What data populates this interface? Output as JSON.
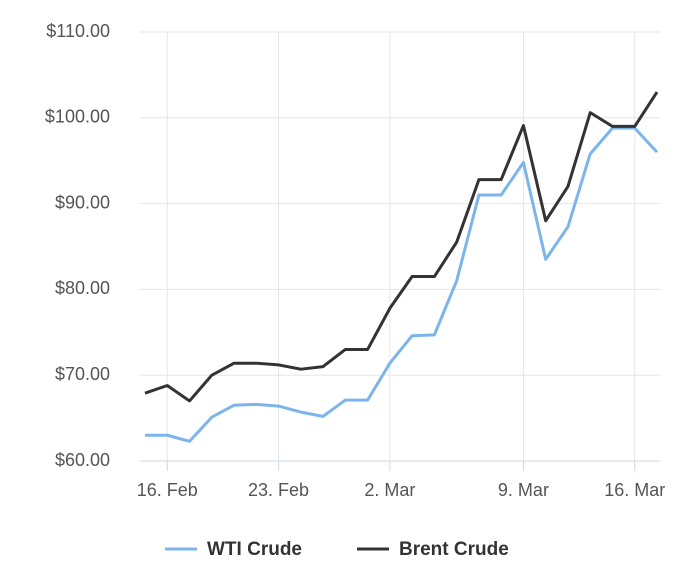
{
  "chart_data": {
    "type": "line",
    "categories": [
      null,
      "16. Feb",
      null,
      null,
      null,
      null,
      "23. Feb",
      null,
      null,
      null,
      null,
      "2. Mar",
      null,
      null,
      null,
      null,
      null,
      "9. Mar",
      null,
      null,
      null,
      null,
      "16. Mar",
      null
    ],
    "series": [
      {
        "name": "WTI Crude",
        "color": "#7cb5ec",
        "values": [
          63.0,
          63.0,
          62.3,
          65.1,
          66.5,
          66.6,
          66.4,
          65.7,
          65.2,
          67.1,
          67.1,
          71.4,
          74.6,
          74.7,
          81.0,
          91.0,
          91.0,
          94.8,
          83.5,
          87.3,
          95.8,
          98.8,
          98.8,
          96.0
        ]
      },
      {
        "name": "Brent Crude",
        "color": "#333333",
        "values": [
          67.9,
          68.8,
          67.0,
          70.0,
          71.4,
          71.4,
          71.2,
          70.7,
          71.0,
          73.0,
          73.0,
          77.8,
          81.5,
          81.5,
          85.5,
          92.8,
          92.8,
          99.1,
          88.0,
          92.0,
          100.6,
          99.0,
          99.0,
          103.0
        ]
      }
    ],
    "ylim": [
      60,
      110
    ],
    "yticks": [
      {
        "value": 60,
        "label": "$60.00"
      },
      {
        "value": 70,
        "label": "$70.00"
      },
      {
        "value": 80,
        "label": "$80.00"
      },
      {
        "value": 90,
        "label": "$90.00"
      },
      {
        "value": 100,
        "label": "$100.00"
      },
      {
        "value": 110,
        "label": "$110.00"
      }
    ],
    "grid": true,
    "legend": "bottom"
  }
}
